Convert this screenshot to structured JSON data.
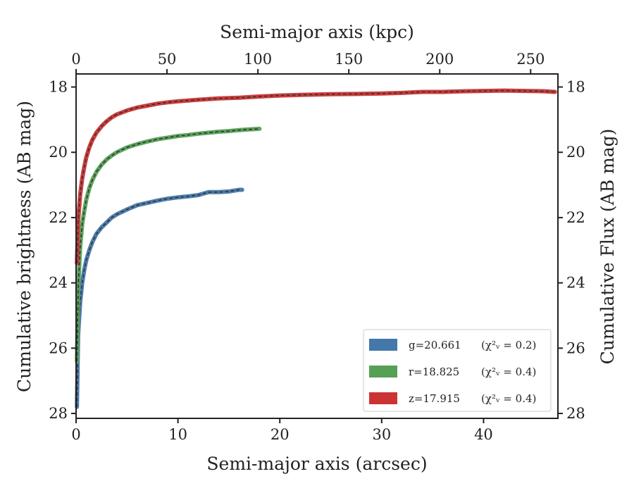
{
  "chart_data": {
    "type": "line",
    "xlabel": "Semi-major axis (arcsec)",
    "x2label": "Semi-major axis (kpc)",
    "ylabel": "Cumulative brightness (AB mag)",
    "y2label": "Cumulative Flux (AB mag)",
    "xlim": [
      0,
      47.3
    ],
    "x2lim": [
      0,
      265
    ],
    "ylim": [
      28.15,
      17.6
    ],
    "y_inverted": true,
    "xticks": [
      "0",
      "10",
      "20",
      "30",
      "40"
    ],
    "x2ticks": [
      "0",
      "50",
      "100",
      "150",
      "200",
      "250"
    ],
    "yticks": [
      "18",
      "20",
      "22",
      "24",
      "26",
      "28"
    ],
    "grid": false,
    "legend_position": "lower-right",
    "series": [
      {
        "name": "g=20.661",
        "chi2_label": "(χ²ᵥ = 0.2)",
        "color": "#4477aa",
        "x": [
          0.08,
          0.2,
          0.4,
          0.6,
          0.8,
          1.0,
          1.3,
          1.6,
          2.0,
          2.5,
          3.0,
          3.5,
          4.0,
          5.0,
          6.0,
          7.0,
          8.0,
          9.0,
          10.0,
          11.0,
          12.0,
          13.0,
          14.0,
          15.0,
          16.0,
          16.3
        ],
        "y": [
          27.8,
          25.6,
          24.6,
          24.0,
          23.6,
          23.3,
          23.0,
          22.75,
          22.5,
          22.3,
          22.15,
          22.0,
          21.9,
          21.75,
          21.62,
          21.55,
          21.48,
          21.42,
          21.38,
          21.35,
          21.31,
          21.22,
          21.22,
          21.2,
          21.15,
          21.15
        ]
      },
      {
        "name": "r=18.825",
        "chi2_label": "(χ²ᵥ = 0.4)",
        "color": "#55a055",
        "x": [
          0.08,
          0.2,
          0.4,
          0.6,
          0.8,
          1.0,
          1.3,
          1.6,
          2.0,
          2.5,
          3.0,
          3.5,
          4.0,
          5.0,
          6.0,
          7.0,
          8.0,
          9.0,
          10.0,
          11.0,
          12.0,
          13.0,
          14.0,
          15.0,
          16.0,
          17.0,
          18.0
        ],
        "y": [
          26.4,
          24.2,
          22.9,
          22.2,
          21.8,
          21.45,
          21.1,
          20.85,
          20.6,
          20.38,
          20.22,
          20.1,
          20.0,
          19.85,
          19.75,
          19.67,
          19.6,
          19.55,
          19.5,
          19.47,
          19.43,
          19.4,
          19.37,
          19.35,
          19.32,
          19.3,
          19.28
        ]
      },
      {
        "name": "z=17.915",
        "chi2_label": "(χ²ᵥ = 0.4)",
        "color": "#cc3333",
        "x": [
          0.08,
          0.2,
          0.4,
          0.6,
          0.8,
          1.0,
          1.3,
          1.6,
          2.0,
          2.5,
          3.0,
          3.5,
          4.0,
          5.0,
          6.0,
          7.0,
          8.0,
          9.0,
          10.0,
          12.0,
          14.0,
          16.0,
          18.0,
          20.0,
          22.0,
          25.0,
          28.0,
          30.0,
          32.0,
          34.0,
          36.0,
          38.0,
          40.0,
          42.0,
          44.0,
          46.0,
          47.0
        ],
        "y": [
          23.4,
          22.1,
          21.3,
          20.8,
          20.45,
          20.15,
          19.85,
          19.62,
          19.4,
          19.2,
          19.05,
          18.93,
          18.84,
          18.72,
          18.63,
          18.57,
          18.51,
          18.47,
          18.44,
          18.39,
          18.35,
          18.33,
          18.29,
          18.26,
          18.24,
          18.22,
          18.21,
          18.2,
          18.18,
          18.15,
          18.15,
          18.13,
          18.12,
          18.11,
          18.12,
          18.13,
          18.15
        ]
      }
    ]
  }
}
